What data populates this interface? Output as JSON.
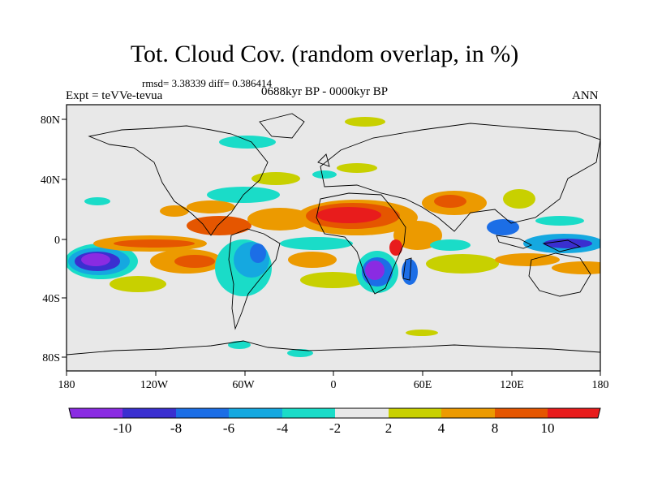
{
  "figure": {
    "title": "Tot. Cloud Cov. (random overlap, in %)",
    "stats": "rmsd= 3.38339 diff= 0.386414",
    "experiment": "Expt = teVVe-tevua",
    "period": "0688kyr BP - 0000kyr BP",
    "season": "ANN"
  },
  "map": {
    "lat_labels": [
      "80N",
      "40N",
      "0",
      "40S",
      "80S"
    ],
    "lon_labels": [
      "180",
      "120W",
      "60W",
      "0",
      "60E",
      "120E",
      "180"
    ],
    "background_color": "#e8e8e8",
    "coastline_color": "#000000"
  },
  "colorbar": {
    "labels": [
      "-10",
      "-8",
      "-6",
      "-4",
      "-2",
      "2",
      "4",
      "8",
      "10"
    ],
    "colors": [
      "#8a2be2",
      "#3a2fd0",
      "#1c6ee6",
      "#15a8e0",
      "#1adcc8",
      "#e8e8e8",
      "#c8d000",
      "#ec9a00",
      "#e55600",
      "#e81c1c"
    ]
  }
}
